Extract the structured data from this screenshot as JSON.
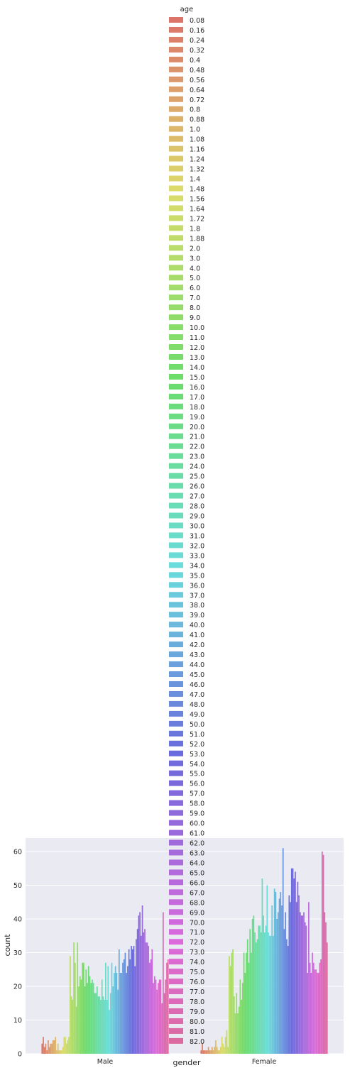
{
  "chart_data": {
    "type": "bar",
    "xlabel": "gender",
    "ylabel": "count",
    "categories": [
      "Male",
      "Female"
    ],
    "ylim": [
      0,
      64
    ],
    "yticks": [
      0,
      10,
      20,
      30,
      40,
      50,
      60
    ],
    "grid": true,
    "legend": {
      "title": "age",
      "placement": "top-center"
    },
    "series": [
      {
        "name": "0.08",
        "values": [
          3,
          1
        ]
      },
      {
        "name": "0.16",
        "values": [
          5,
          3
        ]
      },
      {
        "name": "0.24",
        "values": [
          2,
          1
        ]
      },
      {
        "name": "0.32",
        "values": [
          3,
          1
        ]
      },
      {
        "name": "0.4",
        "values": [
          1,
          1
        ]
      },
      {
        "name": "0.48",
        "values": [
          4,
          1
        ]
      },
      {
        "name": "0.56",
        "values": [
          2,
          2
        ]
      },
      {
        "name": "0.64",
        "values": [
          3,
          1
        ]
      },
      {
        "name": "0.72",
        "values": [
          3,
          1
        ]
      },
      {
        "name": "0.8",
        "values": [
          4,
          2
        ]
      },
      {
        "name": "0.88",
        "values": [
          4,
          1
        ]
      },
      {
        "name": "1.0",
        "values": [
          5,
          2
        ]
      },
      {
        "name": "1.08",
        "values": [
          1,
          4
        ]
      },
      {
        "name": "1.16",
        "values": [
          3,
          2
        ]
      },
      {
        "name": "1.24",
        "values": [
          1,
          1
        ]
      },
      {
        "name": "1.32",
        "values": [
          1,
          1
        ]
      },
      {
        "name": "1.4",
        "values": [
          1,
          2
        ]
      },
      {
        "name": "1.48",
        "values": [
          2,
          5
        ]
      },
      {
        "name": "1.56",
        "values": [
          5,
          3
        ]
      },
      {
        "name": "1.64",
        "values": [
          5,
          2
        ]
      },
      {
        "name": "1.72",
        "values": [
          3,
          5
        ]
      },
      {
        "name": "1.8",
        "values": [
          4,
          7
        ]
      },
      {
        "name": "1.88",
        "values": [
          5,
          2
        ]
      },
      {
        "name": "2.0",
        "values": [
          29,
          29
        ]
      },
      {
        "name": "3.0",
        "values": [
          17,
          26
        ]
      },
      {
        "name": "4.0",
        "values": [
          16,
          30
        ]
      },
      {
        "name": "5.0",
        "values": [
          33,
          31
        ]
      },
      {
        "name": "6.0",
        "values": [
          27,
          17
        ]
      },
      {
        "name": "7.0",
        "values": [
          14,
          12
        ]
      },
      {
        "name": "8.0",
        "values": [
          33,
          18
        ]
      },
      {
        "name": "9.0",
        "values": [
          20,
          12
        ]
      },
      {
        "name": "10.0",
        "values": [
          23,
          14
        ]
      },
      {
        "name": "11.0",
        "values": [
          22,
          22
        ]
      },
      {
        "name": "12.0",
        "values": [
          27,
          16
        ]
      },
      {
        "name": "13.0",
        "values": [
          27,
          21
        ]
      },
      {
        "name": "14.0",
        "values": [
          20,
          30
        ]
      },
      {
        "name": "15.0",
        "values": [
          25,
          24
        ]
      },
      {
        "name": "16.0",
        "values": [
          21,
          30
        ]
      },
      {
        "name": "17.0",
        "values": [
          26,
          34
        ]
      },
      {
        "name": "18.0",
        "values": [
          23,
          27
        ]
      },
      {
        "name": "19.0",
        "values": [
          21,
          37
        ]
      },
      {
        "name": "20.0",
        "values": [
          22,
          30
        ]
      },
      {
        "name": "21.0",
        "values": [
          21,
          40
        ]
      },
      {
        "name": "22.0",
        "values": [
          18,
          41
        ]
      },
      {
        "name": "23.0",
        "values": [
          18,
          36
        ]
      },
      {
        "name": "24.0",
        "values": [
          20,
          33
        ]
      },
      {
        "name": "25.0",
        "values": [
          17,
          34
        ]
      },
      {
        "name": "26.0",
        "values": [
          17,
          38
        ]
      },
      {
        "name": "27.0",
        "values": [
          16,
          38
        ]
      },
      {
        "name": "28.0",
        "values": [
          22,
          36
        ]
      },
      {
        "name": "29.0",
        "values": [
          17,
          52
        ]
      },
      {
        "name": "30.0",
        "values": [
          16,
          41
        ]
      },
      {
        "name": "31.0",
        "values": [
          27,
          36
        ]
      },
      {
        "name": "32.0",
        "values": [
          16,
          38
        ]
      },
      {
        "name": "33.0",
        "values": [
          26,
          50
        ]
      },
      {
        "name": "34.0",
        "values": [
          13,
          36
        ]
      },
      {
        "name": "35.0",
        "values": [
          18,
          35
        ]
      },
      {
        "name": "36.0",
        "values": [
          27,
          35
        ]
      },
      {
        "name": "37.0",
        "values": [
          20,
          44
        ]
      },
      {
        "name": "38.0",
        "values": [
          24,
          35
        ]
      },
      {
        "name": "39.0",
        "values": [
          26,
          49
        ]
      },
      {
        "name": "40.0",
        "values": [
          24,
          48
        ]
      },
      {
        "name": "41.0",
        "values": [
          19,
          40
        ]
      },
      {
        "name": "42.0",
        "values": [
          31,
          42
        ]
      },
      {
        "name": "43.0",
        "values": [
          24,
          46
        ]
      },
      {
        "name": "44.0",
        "values": [
          24,
          48
        ]
      },
      {
        "name": "45.0",
        "values": [
          27,
          44
        ]
      },
      {
        "name": "46.0",
        "values": [
          28,
          61
        ]
      },
      {
        "name": "47.0",
        "values": [
          30,
          37
        ]
      },
      {
        "name": "48.0",
        "values": [
          24,
          42
        ]
      },
      {
        "name": "49.0",
        "values": [
          26,
          34
        ]
      },
      {
        "name": "50.0",
        "values": [
          31,
          32
        ]
      },
      {
        "name": "51.0",
        "values": [
          28,
          47
        ]
      },
      {
        "name": "52.0",
        "values": [
          32,
          45
        ]
      },
      {
        "name": "53.0",
        "values": [
          31,
          55
        ]
      },
      {
        "name": "54.0",
        "values": [
          32,
          55
        ]
      },
      {
        "name": "55.0",
        "values": [
          26,
          52
        ]
      },
      {
        "name": "56.0",
        "values": [
          34,
          54
        ]
      },
      {
        "name": "57.0",
        "values": [
          37,
          45
        ]
      },
      {
        "name": "58.0",
        "values": [
          41,
          51
        ]
      },
      {
        "name": "59.0",
        "values": [
          42,
          47
        ]
      },
      {
        "name": "60.0",
        "values": [
          35,
          42
        ]
      },
      {
        "name": "61.0",
        "values": [
          44,
          41
        ]
      },
      {
        "name": "62.0",
        "values": [
          36,
          41
        ]
      },
      {
        "name": "63.0",
        "values": [
          37,
          42
        ]
      },
      {
        "name": "64.0",
        "values": [
          33,
          39
        ]
      },
      {
        "name": "65.0",
        "values": [
          33,
          38
        ]
      },
      {
        "name": "66.0",
        "values": [
          32,
          24
        ]
      },
      {
        "name": "67.0",
        "values": [
          27,
          45
        ]
      },
      {
        "name": "68.0",
        "values": [
          28,
          27
        ]
      },
      {
        "name": "69.0",
        "values": [
          31,
          24
        ]
      },
      {
        "name": "70.0",
        "values": [
          21,
          30
        ]
      },
      {
        "name": "71.0",
        "values": [
          23,
          27
        ]
      },
      {
        "name": "72.0",
        "values": [
          22,
          25
        ]
      },
      {
        "name": "73.0",
        "values": [
          19,
          25
        ]
      },
      {
        "name": "74.0",
        "values": [
          21,
          24
        ]
      },
      {
        "name": "75.0",
        "values": [
          22,
          24
        ]
      },
      {
        "name": "76.0",
        "values": [
          22,
          27
        ]
      },
      {
        "name": "77.0",
        "values": [
          15,
          28
        ]
      },
      {
        "name": "78.0",
        "values": [
          42,
          60
        ]
      },
      {
        "name": "79.0",
        "values": [
          18,
          59
        ]
      },
      {
        "name": "80.0",
        "values": [
          22,
          42
        ]
      },
      {
        "name": "81.0",
        "values": [
          27,
          39
        ]
      },
      {
        "name": "82.0",
        "values": [
          28,
          33
        ]
      }
    ]
  }
}
